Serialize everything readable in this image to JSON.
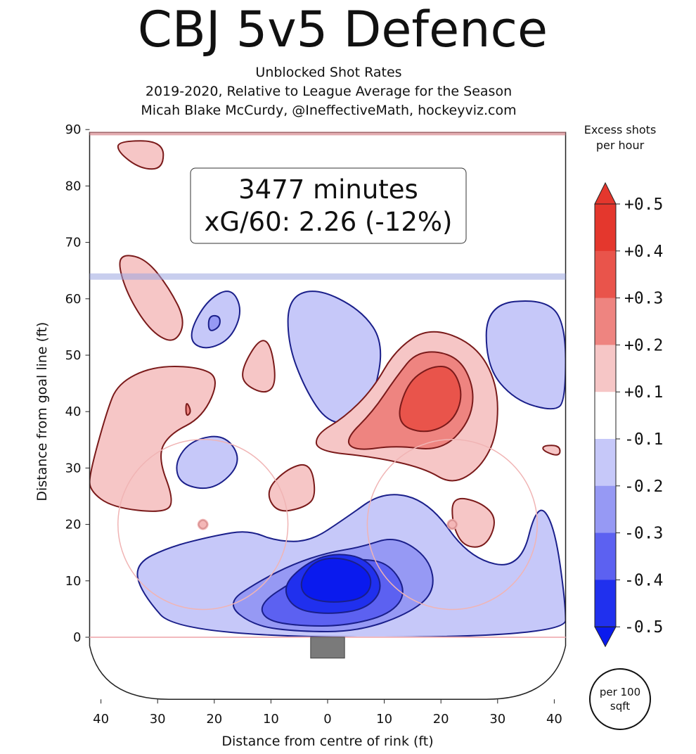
{
  "header": {
    "title": "CBJ 5v5 Defence",
    "subtitle_lines": [
      "Unblocked Shot Rates",
      "2019-2020, Relative to League Average for the Season",
      "Micah Blake McCurdy, @IneffectiveMath, hockeyviz.com"
    ]
  },
  "chart_data": {
    "type": "heatmap",
    "xlabel": "Distance from centre of rink (ft)",
    "ylabel": "Distance from goal line (ft)",
    "xlim": [
      -42,
      42
    ],
    "ylim": [
      -11,
      90
    ],
    "x_ticks": [
      "40",
      "30",
      "20",
      "10",
      "0",
      "10",
      "20",
      "30",
      "40"
    ],
    "x_tick_values": [
      -40,
      -30,
      -20,
      -10,
      0,
      10,
      20,
      30,
      40
    ],
    "y_ticks": [
      "0",
      "10",
      "20",
      "30",
      "40",
      "50",
      "60",
      "70",
      "80",
      "90"
    ],
    "y_tick_values": [
      0,
      10,
      20,
      30,
      40,
      50,
      60,
      70,
      80,
      90
    ],
    "grid": false,
    "annotation": {
      "line1": "3477 minutes",
      "line2": "xG/60: 2.26 (-12%)"
    },
    "colorbar": {
      "title": "Excess shots per hour",
      "labels": [
        "+0.5",
        "+0.4",
        "+0.3",
        "+0.2",
        "+0.1",
        "-0.1",
        "-0.2",
        "-0.3",
        "-0.4",
        "-0.5"
      ],
      "levels": [
        0.5,
        0.4,
        0.3,
        0.2,
        0.1,
        -0.1,
        -0.2,
        -0.3,
        -0.4,
        -0.5
      ],
      "colors": [
        "#e4372d",
        "#e9544b",
        "#ee8480",
        "#f6c6c6",
        "#ffffff",
        "#c6c8f9",
        "#9699f4",
        "#5c61f1",
        "#2030ee",
        "#0a1aee"
      ]
    },
    "unit_badge": "per 100 sqft",
    "regions": [
      {
        "sign": "+",
        "level": 0.1,
        "points": [
          [
            -37,
            88
          ],
          [
            -29,
            88
          ],
          [
            -29,
            83
          ],
          [
            -33,
            83
          ],
          [
            -37,
            86
          ]
        ]
      },
      {
        "sign": "+",
        "level": 0.1,
        "points": [
          [
            -36,
            68
          ],
          [
            -32,
            67
          ],
          [
            -28,
            62
          ],
          [
            -25,
            56
          ],
          [
            -27,
            52
          ],
          [
            -31,
            54
          ],
          [
            -35,
            60
          ],
          [
            -37,
            66
          ]
        ]
      },
      {
        "sign": "-",
        "level": 0.1,
        "points": [
          [
            -24,
            55
          ],
          [
            -21,
            60
          ],
          [
            -17,
            62
          ],
          [
            -15,
            58
          ],
          [
            -17,
            53
          ],
          [
            -21,
            51
          ],
          [
            -24,
            52
          ]
        ]
      },
      {
        "sign": "-",
        "level": 0.2,
        "points": [
          [
            -21,
            57
          ],
          [
            -19,
            57
          ],
          [
            -19,
            55
          ],
          [
            -21,
            54
          ]
        ]
      },
      {
        "sign": "+",
        "level": 0.1,
        "points": [
          [
            -15,
            48
          ],
          [
            -12,
            53
          ],
          [
            -10,
            52
          ],
          [
            -9,
            45
          ],
          [
            -11,
            43
          ],
          [
            -15,
            45
          ]
        ]
      },
      {
        "sign": "+",
        "level": 0.1,
        "points": [
          [
            -42,
            29
          ],
          [
            -39,
            40
          ],
          [
            -37,
            45
          ],
          [
            -31,
            48
          ],
          [
            -23,
            48
          ],
          [
            -19,
            46
          ],
          [
            -22,
            39
          ],
          [
            -28,
            36
          ],
          [
            -30,
            32
          ],
          [
            -27,
            24
          ],
          [
            -29,
            22
          ],
          [
            -38,
            23
          ],
          [
            -42,
            26
          ]
        ]
      },
      {
        "sign": "+",
        "level": 0.2,
        "points": [
          [
            -25,
            42
          ],
          [
            -25,
            39
          ],
          [
            -24,
            40
          ]
        ]
      },
      {
        "sign": "-",
        "level": 0.1,
        "points": [
          [
            -7,
            60
          ],
          [
            -2,
            62
          ],
          [
            6,
            58
          ],
          [
            10,
            52
          ],
          [
            8,
            42
          ],
          [
            5,
            38
          ],
          [
            0,
            38
          ],
          [
            -4,
            44
          ],
          [
            -7,
            52
          ]
        ]
      },
      {
        "sign": "-",
        "level": 0.1,
        "points": [
          [
            28,
            59
          ],
          [
            38,
            60
          ],
          [
            42,
            56
          ],
          [
            42,
            42
          ],
          [
            40,
            40
          ],
          [
            33,
            42
          ],
          [
            28,
            48
          ]
        ]
      },
      {
        "sign": "-",
        "level": 0.1,
        "points": [
          [
            -27,
            31
          ],
          [
            -24,
            35
          ],
          [
            -18,
            36
          ],
          [
            -15,
            31
          ],
          [
            -20,
            26
          ],
          [
            -26,
            27
          ]
        ]
      },
      {
        "sign": "+",
        "level": 0.1,
        "points": [
          [
            -11,
            26
          ],
          [
            -7,
            30
          ],
          [
            -3,
            31
          ],
          [
            -2,
            25
          ],
          [
            -4,
            23
          ],
          [
            -9,
            22
          ]
        ]
      },
      {
        "sign": "+",
        "level": 0.1,
        "points": [
          [
            -2,
            36
          ],
          [
            3,
            39
          ],
          [
            8,
            44
          ],
          [
            12,
            51
          ],
          [
            18,
            55
          ],
          [
            26,
            52
          ],
          [
            30,
            45
          ],
          [
            30,
            36
          ],
          [
            27,
            30
          ],
          [
            22,
            27
          ],
          [
            17,
            30
          ],
          [
            8,
            32
          ],
          [
            -2,
            33
          ]
        ]
      },
      {
        "sign": "+",
        "level": 0.2,
        "points": [
          [
            3,
            35
          ],
          [
            8,
            40
          ],
          [
            12,
            46
          ],
          [
            16,
            51
          ],
          [
            23,
            50
          ],
          [
            26,
            44
          ],
          [
            25,
            38
          ],
          [
            20,
            33
          ],
          [
            12,
            34
          ],
          [
            5,
            33
          ]
        ]
      },
      {
        "sign": "+",
        "level": 0.3,
        "points": [
          [
            12,
            38
          ],
          [
            14,
            45
          ],
          [
            18,
            48
          ],
          [
            22,
            48
          ],
          [
            24,
            43
          ],
          [
            22,
            38
          ],
          [
            17,
            36
          ]
        ]
      },
      {
        "sign": "+",
        "level": 0.1,
        "points": [
          [
            38,
            34
          ],
          [
            41,
            34
          ],
          [
            41,
            32
          ],
          [
            38,
            33
          ]
        ]
      },
      {
        "sign": "+",
        "level": 0.1,
        "points": [
          [
            22,
            25
          ],
          [
            27,
            24
          ],
          [
            30,
            21
          ],
          [
            28,
            16
          ],
          [
            24,
            16
          ],
          [
            22,
            20
          ]
        ]
      },
      {
        "sign": "+",
        "level": 0.1,
        "points": [
          [
            -22,
            21
          ],
          [
            -21,
            20
          ],
          [
            -22,
            19
          ],
          [
            -23,
            20
          ]
        ]
      },
      {
        "sign": "+",
        "level": 0.1,
        "points": [
          [
            22,
            21
          ],
          [
            23,
            20
          ],
          [
            22,
            19
          ],
          [
            21,
            20
          ]
        ]
      },
      {
        "sign": "-",
        "level": 0.1,
        "points": [
          [
            -34,
            13
          ],
          [
            -28,
            16
          ],
          [
            -20,
            18
          ],
          [
            -14,
            19
          ],
          [
            -9,
            17
          ],
          [
            -3,
            17
          ],
          [
            3,
            21
          ],
          [
            10,
            26
          ],
          [
            18,
            24
          ],
          [
            25,
            14
          ],
          [
            34,
            12
          ],
          [
            37,
            24
          ],
          [
            40,
            20
          ],
          [
            42,
            6
          ],
          [
            42,
            0
          ],
          [
            -26,
            0
          ],
          [
            -33,
            8
          ]
        ]
      },
      {
        "sign": "-",
        "level": 0.2,
        "points": [
          [
            -18,
            6
          ],
          [
            -12,
            10
          ],
          [
            -6,
            13
          ],
          [
            0,
            15
          ],
          [
            6,
            16
          ],
          [
            12,
            18
          ],
          [
            18,
            14
          ],
          [
            19,
            8
          ],
          [
            14,
            4
          ],
          [
            5,
            1
          ],
          [
            -5,
            1
          ],
          [
            -13,
            2
          ]
        ]
      },
      {
        "sign": "-",
        "level": 0.3,
        "points": [
          [
            -12,
            6
          ],
          [
            -6,
            10
          ],
          [
            0,
            13
          ],
          [
            6,
            14
          ],
          [
            11,
            13
          ],
          [
            14,
            8
          ],
          [
            11,
            4
          ],
          [
            3,
            2
          ],
          [
            -5,
            2
          ],
          [
            -11,
            3
          ]
        ]
      },
      {
        "sign": "-",
        "level": 0.4,
        "points": [
          [
            -8,
            9
          ],
          [
            -4,
            13
          ],
          [
            1,
            15
          ],
          [
            7,
            14
          ],
          [
            10,
            9
          ],
          [
            7,
            5
          ],
          [
            0,
            4
          ],
          [
            -6,
            5
          ]
        ]
      },
      {
        "sign": "-",
        "level": 0.5,
        "points": [
          [
            -5,
            10
          ],
          [
            -2,
            14
          ],
          [
            4,
            14
          ],
          [
            8,
            11
          ],
          [
            7,
            7
          ],
          [
            1,
            6
          ],
          [
            -4,
            7
          ]
        ]
      }
    ]
  }
}
